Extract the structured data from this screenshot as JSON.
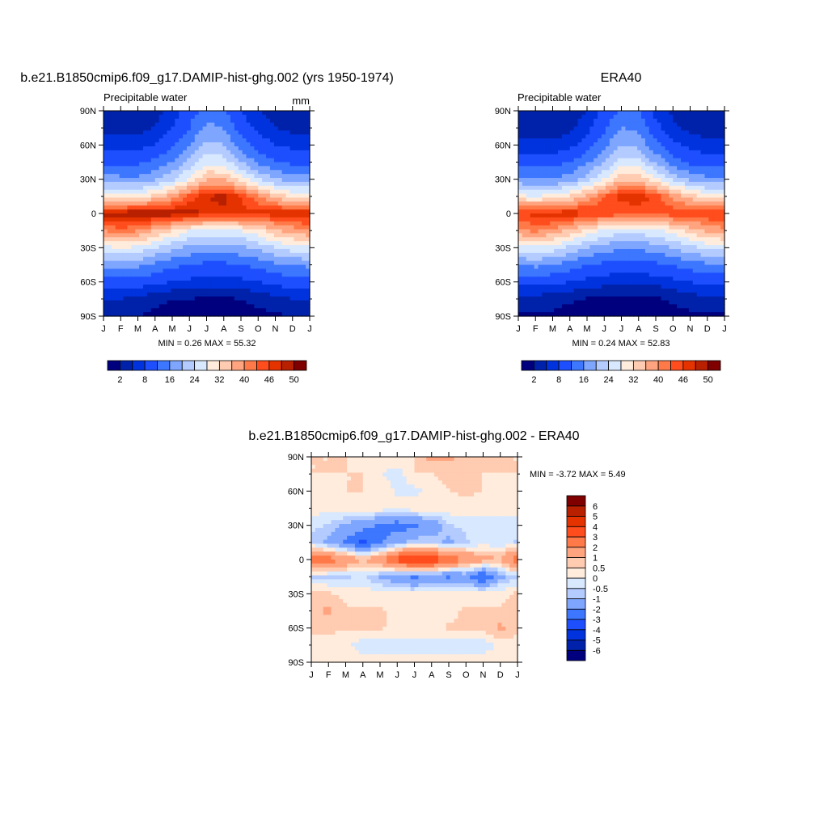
{
  "chart_data": [
    {
      "type": "heatmap",
      "title": "b.e21.B1850cmip6.f09_g17.DAMIP-hist-ghg.002 (yrs 1950-1974)",
      "left_label": "Precipitable water",
      "units": "mm",
      "min_max_text": "MIN =   0.26 MAX =  55.32",
      "x_ticks": [
        "J",
        "F",
        "M",
        "A",
        "M",
        "J",
        "J",
        "A",
        "S",
        "O",
        "N",
        "D",
        "J"
      ],
      "y_ticks": [
        "90N",
        "60N",
        "30N",
        "0",
        "30S",
        "60S",
        "90S"
      ],
      "lat": [
        90,
        75,
        60,
        45,
        30,
        15,
        0,
        -15,
        -30,
        -45,
        -60,
        -75,
        -90
      ],
      "levels": [
        2,
        5,
        8,
        12,
        16,
        20,
        24,
        28,
        32,
        36,
        40,
        43,
        46,
        48,
        50
      ],
      "level_labels": [
        "2",
        "8",
        "16",
        "24",
        "32",
        "40",
        "46",
        "50"
      ],
      "z": [
        [
          3,
          3,
          3,
          4,
          6,
          10,
          14,
          13,
          8,
          5,
          4,
          3,
          3
        ],
        [
          4,
          4,
          4,
          5,
          8,
          12,
          17,
          16,
          10,
          7,
          5,
          4,
          4
        ],
        [
          7,
          7,
          7,
          8,
          11,
          16,
          21,
          20,
          14,
          10,
          8,
          7,
          7
        ],
        [
          11,
          11,
          11,
          13,
          16,
          21,
          27,
          26,
          20,
          15,
          12,
          11,
          11
        ],
        [
          18,
          17,
          17,
          19,
          23,
          29,
          36,
          36,
          30,
          24,
          20,
          18,
          18
        ],
        [
          30,
          29,
          30,
          33,
          38,
          44,
          48,
          49,
          46,
          40,
          35,
          31,
          30
        ],
        [
          49,
          50,
          51,
          51,
          50,
          50,
          47,
          47,
          47,
          47,
          48,
          48,
          49
        ],
        [
          40,
          42,
          40,
          36,
          32,
          28,
          27,
          27,
          28,
          31,
          35,
          38,
          40
        ],
        [
          27,
          28,
          27,
          24,
          21,
          19,
          18,
          18,
          19,
          21,
          24,
          26,
          27
        ],
        [
          17,
          18,
          17,
          15,
          13,
          12,
          11,
          11,
          12,
          13,
          15,
          16,
          17
        ],
        [
          10,
          10,
          10,
          9,
          8,
          7,
          7,
          7,
          7,
          8,
          9,
          10,
          10
        ],
        [
          5,
          5,
          4,
          3,
          2,
          2,
          1.5,
          1.5,
          2,
          3,
          4,
          5,
          5
        ],
        [
          2,
          2,
          2,
          1,
          0.5,
          0.5,
          0.5,
          0.5,
          0.5,
          1,
          1.5,
          2,
          2
        ]
      ]
    },
    {
      "type": "heatmap",
      "title": "ERA40",
      "left_label": "Precipitable water",
      "min_max_text": "MIN =   0.24 MAX =  52.83",
      "x_ticks": [
        "J",
        "F",
        "M",
        "A",
        "M",
        "J",
        "J",
        "A",
        "S",
        "O",
        "N",
        "D",
        "J"
      ],
      "y_ticks": [
        "90N",
        "60N",
        "30N",
        "0",
        "30S",
        "60S",
        "90S"
      ],
      "lat": [
        90,
        75,
        60,
        45,
        30,
        15,
        0,
        -15,
        -30,
        -45,
        -60,
        -75,
        -90
      ],
      "levels": [
        2,
        5,
        8,
        12,
        16,
        20,
        24,
        28,
        32,
        36,
        40,
        43,
        46,
        48,
        50
      ],
      "level_labels": [
        "2",
        "8",
        "16",
        "24",
        "32",
        "40",
        "46",
        "50"
      ],
      "z": [
        [
          2,
          2,
          2,
          3,
          5,
          9,
          13,
          12,
          7,
          4,
          3,
          2,
          2
        ],
        [
          3,
          3,
          3,
          4,
          7,
          11,
          16,
          15,
          9,
          6,
          4,
          3,
          3
        ],
        [
          6,
          6,
          6,
          7,
          10,
          15,
          20,
          19,
          13,
          9,
          7,
          6,
          6
        ],
        [
          10,
          10,
          10,
          12,
          15,
          20,
          26,
          25,
          19,
          14,
          11,
          10,
          10
        ],
        [
          17,
          16,
          16,
          18,
          22,
          28,
          35,
          35,
          29,
          23,
          19,
          17,
          17
        ],
        [
          29,
          28,
          29,
          32,
          37,
          43,
          47,
          48,
          45,
          39,
          34,
          30,
          29
        ],
        [
          46,
          47,
          48,
          48,
          47,
          46,
          44,
          44,
          44,
          45,
          46,
          46,
          46
        ],
        [
          39,
          41,
          39,
          35,
          31,
          27,
          26,
          26,
          27,
          30,
          34,
          37,
          39
        ],
        [
          26,
          27,
          26,
          23,
          20,
          18,
          17,
          17,
          18,
          20,
          23,
          25,
          26
        ],
        [
          16,
          17,
          16,
          14,
          12,
          11,
          10,
          10,
          11,
          12,
          14,
          15,
          16
        ],
        [
          9,
          9,
          9,
          8,
          7,
          6,
          6,
          6,
          6,
          7,
          8,
          9,
          9
        ],
        [
          4,
          4,
          3,
          2.5,
          1.8,
          1.5,
          1.2,
          1.2,
          1.5,
          2.5,
          3.5,
          4,
          4
        ],
        [
          1.5,
          1.5,
          1.5,
          0.8,
          0.4,
          0.4,
          0.4,
          0.4,
          0.4,
          0.8,
          1.2,
          1.5,
          1.5
        ]
      ]
    },
    {
      "type": "heatmap",
      "title": "b.e21.B1850cmip6.f09_g17.DAMIP-hist-ghg.002 - ERA40",
      "min_max_text": "MIN =  -3.72 MAX =   5.49",
      "x_ticks": [
        "J",
        "F",
        "M",
        "A",
        "M",
        "J",
        "J",
        "A",
        "S",
        "O",
        "N",
        "D",
        "J"
      ],
      "y_ticks": [
        "90N",
        "60N",
        "30N",
        "0",
        "30S",
        "60S",
        "90S"
      ],
      "lat": [
        90,
        75,
        60,
        45,
        30,
        15,
        0,
        -15,
        -30,
        -45,
        -60,
        -75,
        -90
      ],
      "levels": [
        -6,
        -5,
        -4,
        -3,
        -2,
        -1,
        -0.5,
        0,
        0.5,
        1,
        2,
        3,
        4,
        5,
        6
      ],
      "level_labels": [
        "-6",
        "-5",
        "-4",
        "-3",
        "-2",
        "-1",
        "-0.5",
        "0",
        "0.5",
        "1",
        "2",
        "3",
        "4",
        "5",
        "6"
      ],
      "z": [
        [
          0.5,
          0.5,
          0.5,
          0.3,
          0.3,
          0.5,
          0.5,
          1.2,
          1.2,
          0.5,
          0.5,
          0.5,
          0.5
        ],
        [
          0.5,
          0.5,
          0.5,
          0.5,
          0.1,
          -0.3,
          0.5,
          0.5,
          0.6,
          0.6,
          0.5,
          0.5,
          0.5
        ],
        [
          0.5,
          0.3,
          0.5,
          0.5,
          0.3,
          -0.1,
          -0.2,
          0.3,
          0.5,
          0.6,
          0.5,
          0.3,
          0.5
        ],
        [
          0.3,
          0.1,
          0.3,
          0.3,
          0.3,
          0.3,
          0.3,
          0.3,
          0.3,
          0.3,
          0.3,
          0.3,
          0.3
        ],
        [
          -0.3,
          -0.6,
          -1.2,
          -1.6,
          -2.2,
          -2.6,
          -2.2,
          -1.6,
          -0.6,
          -0.3,
          -0.3,
          -0.3,
          -0.3
        ],
        [
          -0.6,
          -1.2,
          -2.2,
          -3.2,
          -2.2,
          -1.2,
          -0.6,
          -0.6,
          -1.2,
          -0.6,
          -0.3,
          -0.3,
          -0.6
        ],
        [
          3,
          2.5,
          2,
          1,
          2,
          3.5,
          4.5,
          4,
          3,
          2,
          1.5,
          1,
          3
        ],
        [
          -0.6,
          -0.6,
          -0.6,
          -0.3,
          -1.2,
          -1.6,
          -2.2,
          -1.6,
          -2.2,
          -1.6,
          -3.2,
          -1.2,
          -0.6
        ],
        [
          0.6,
          0.6,
          0.3,
          0.3,
          0.3,
          0.1,
          0.1,
          0.3,
          0.3,
          0.3,
          0.3,
          0.3,
          0.6
        ],
        [
          0.6,
          1.2,
          0.6,
          0.6,
          0.6,
          0.3,
          0.3,
          0.3,
          0.3,
          0.6,
          0.6,
          0.6,
          0.6
        ],
        [
          0.6,
          0.6,
          0.6,
          0.6,
          0.6,
          0.3,
          0.3,
          0.3,
          0.6,
          0.6,
          0.6,
          1.2,
          0.6
        ],
        [
          0.3,
          0.3,
          0.1,
          -0.3,
          -0.3,
          -0.3,
          -0.3,
          -0.3,
          -0.3,
          -0.3,
          -0.3,
          0.1,
          0.3
        ],
        [
          0.3,
          0.3,
          0.3,
          0.3,
          0.3,
          0.3,
          0.3,
          0.3,
          0.3,
          0.3,
          0.3,
          0.3,
          0.3
        ]
      ]
    }
  ],
  "colors": [
    "#00007f",
    "#0022aa",
    "#0033dd",
    "#1e4fff",
    "#3d77ff",
    "#7fa6ff",
    "#b3cbff",
    "#d8e8ff",
    "#ffecdc",
    "#ffcbb1",
    "#ffa47f",
    "#ff7a48",
    "#ff4d1d",
    "#e53300",
    "#b82000",
    "#800000"
  ]
}
